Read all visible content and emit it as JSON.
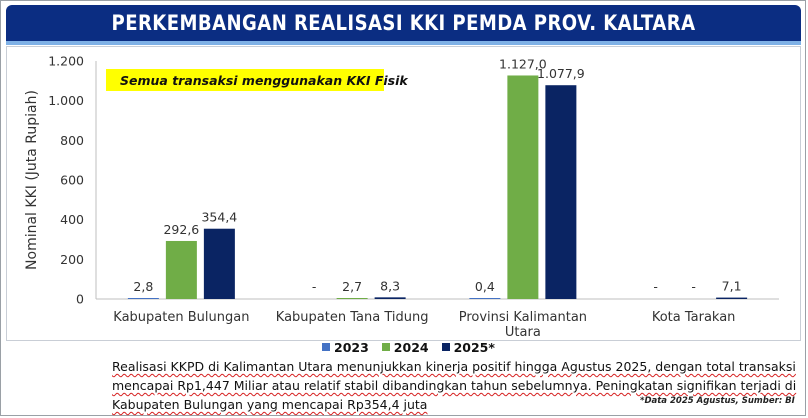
{
  "title": "PERKEMBANGAN REALISASI KKI PEMDA PROV. KALTARA",
  "note": "Semua transaksi menggunakan KKI Fisik",
  "description": "Realisasi KKPD di Kalimantan Utara menunjukkan kinerja positif hingga Agustus 2025, dengan total transaksi mencapai Rp1,447 Miliar atau relatif stabil dibandingkan tahun sebelumnya. Peningkatan signifikan terjadi di Kabupaten Bulungan yang mencapai Rp354,4 juta",
  "source": "*Data 2025 Agustus, Sumber: BI",
  "colors": {
    "title_bg": "#0b2d82",
    "s2023": "#4472c4",
    "s2024": "#70ad47",
    "s2025": "#0a2463"
  },
  "chart_data": {
    "type": "bar",
    "ylabel": "Nominal KKI (Juta Rupiah)",
    "ylim": [
      0,
      1200
    ],
    "yticks": [
      0,
      200,
      400,
      600,
      800,
      1000,
      1200
    ],
    "ytick_labels": [
      "0",
      "200",
      "400",
      "600",
      "800",
      "1.000",
      "1.200"
    ],
    "grid": false,
    "legend": "bottom",
    "categories": [
      [
        "Kabupaten Bulungan"
      ],
      [
        "Kabupaten Tana Tidung"
      ],
      [
        "Provinsi Kalimantan",
        "Utara"
      ],
      [
        "Kota Tarakan"
      ]
    ],
    "series": [
      {
        "name": "2023",
        "color": "#4472c4",
        "values": [
          2.8,
          null,
          0.4,
          null
        ],
        "labels": [
          "2,8",
          "-",
          "0,4",
          "-"
        ]
      },
      {
        "name": "2024",
        "color": "#70ad47",
        "values": [
          292.6,
          2.7,
          1127.0,
          null
        ],
        "labels": [
          "292,6",
          "2,7",
          "1.127,0",
          "-"
        ]
      },
      {
        "name": "2025*",
        "color": "#0a2463",
        "values": [
          354.4,
          8.3,
          1077.9,
          7.1
        ],
        "labels": [
          "354,4",
          "8,3",
          "1.077,9",
          "7,1"
        ]
      }
    ]
  }
}
